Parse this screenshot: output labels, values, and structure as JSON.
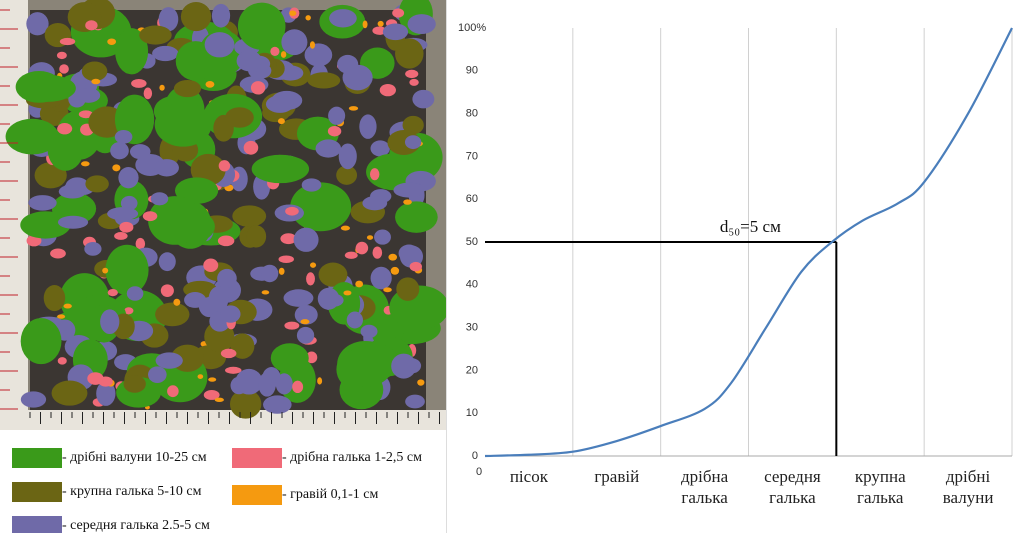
{
  "chart_data": {
    "type": "line",
    "categories": [
      "пісок",
      "гравій",
      "дрібна галька",
      "середня галька",
      "крупна галька",
      "дрібні валуни"
    ],
    "x": [
      0,
      0.5,
      1,
      1.5,
      2,
      2.5,
      2.8,
      3.2,
      3.6,
      3.95,
      4.3,
      4.7,
      5,
      5.5,
      6
    ],
    "values": [
      0,
      0.3,
      1,
      3.5,
      7,
      11,
      17,
      30,
      43,
      50,
      55,
      59,
      64,
      80,
      100
    ],
    "color": "#4a7ebb",
    "xlim": [
      0,
      6
    ],
    "xticks": [
      0
    ],
    "ylim": [
      0,
      100
    ],
    "yticks": [
      0,
      10,
      20,
      30,
      40,
      50,
      60,
      70,
      80,
      90,
      {
        "value": 100,
        "label": "100%"
      }
    ],
    "grid": "x",
    "annotation": "d₅₀=5 см",
    "reference": {
      "x": 4,
      "y": 50
    }
  },
  "image_legend": [
    {
      "label": "- дрібні валуни 10-25 см",
      "color": "#3a9a1a"
    },
    {
      "label": "- дрібна галька 1-2,5 см",
      "color": "#f06a78"
    },
    {
      "label": "- крупна галька 5-10 см",
      "color": "#6b6514"
    },
    {
      "label": "- гравій 0,1-1 см",
      "color": "#f59a10"
    },
    {
      "label": "- середня галька 2.5-5 см",
      "color": "#6f6aa8"
    }
  ]
}
